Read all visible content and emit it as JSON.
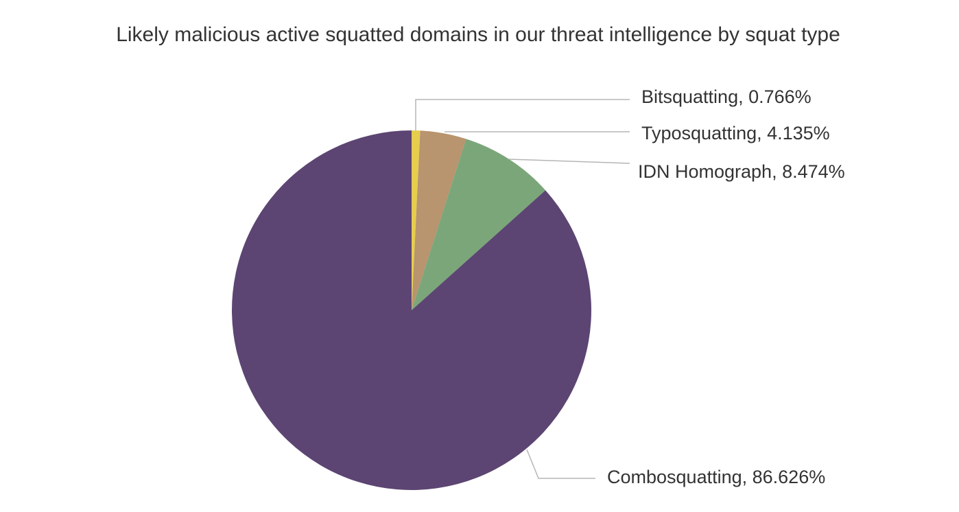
{
  "chart_data": {
    "type": "pie",
    "title": "Likely malicious active squatted domains in our threat intelligence by squat type",
    "values": [
      0.766,
      4.135,
      8.474,
      86.626
    ],
    "value_labels": [
      "Bitsquatting, 0.766%",
      "Typosquatting, 4.135%",
      "IDN Homograph, 8.474%",
      "Combosquatting, 86.626%"
    ],
    "colors": [
      "#e6cd4e",
      "#b8946f",
      "#7ba67a",
      "#5c4572"
    ]
  }
}
